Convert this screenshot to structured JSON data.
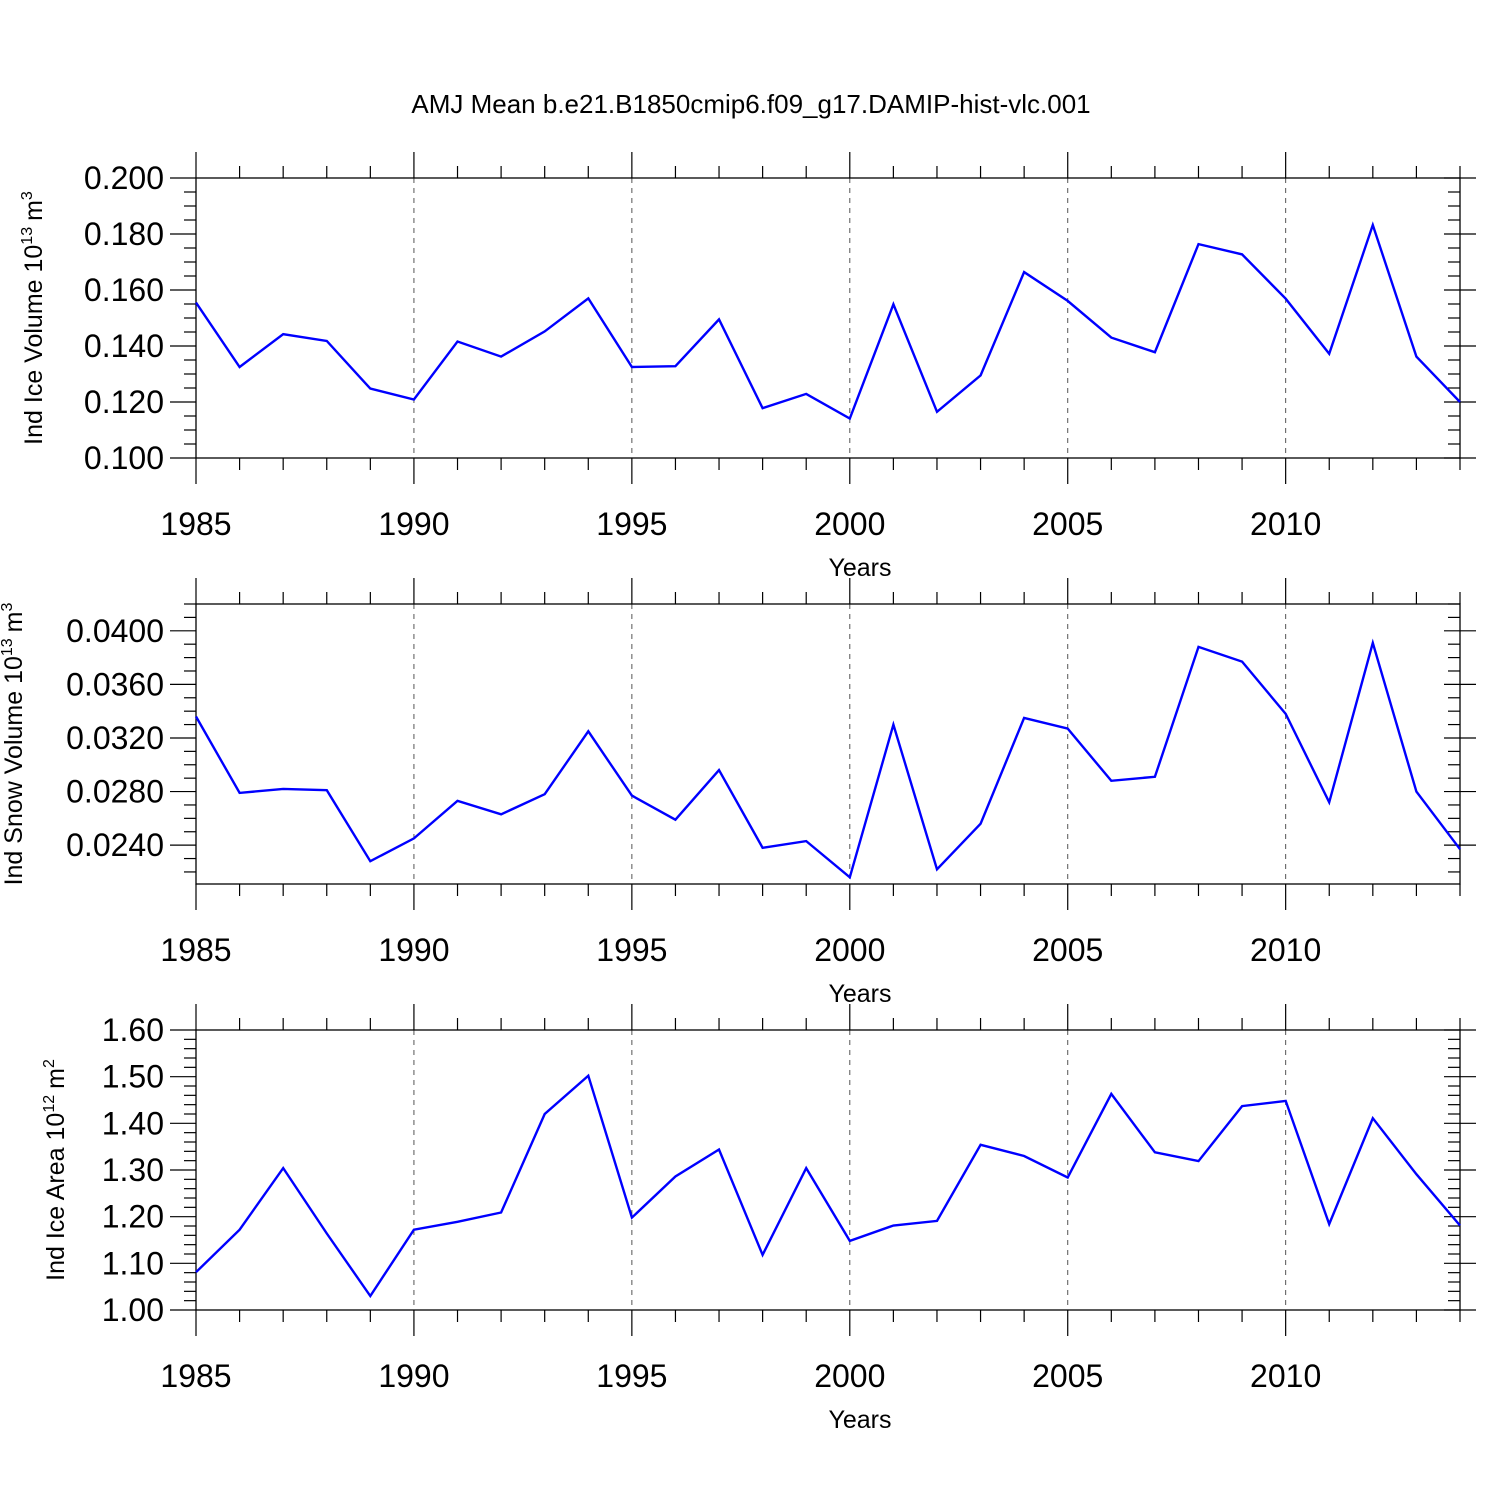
{
  "chart_data": [
    {
      "type": "line",
      "title": "AMJ Mean b.e21.B1850cmip6.f09_g17.DAMIP-hist-vlc.001",
      "ylabel": "Ind Ice Volume 10",
      "ylabel_sup": "13",
      "ylabel_unit": "m",
      "ylabel_unit_sup": "3",
      "xlabel": "Years",
      "xlim": [
        1985,
        2014
      ],
      "ylim": [
        0.1,
        0.2
      ],
      "x_major_ticks": [
        1985,
        1990,
        1995,
        2000,
        2005,
        2010
      ],
      "x_tick_labels": [
        "1985",
        "1990",
        "1995",
        "2000",
        "2005",
        "2010"
      ],
      "y_major_ticks": [
        0.1,
        0.12,
        0.14,
        0.16,
        0.18,
        0.2
      ],
      "y_tick_labels": [
        "0.100",
        "0.120",
        "0.140",
        "0.160",
        "0.180",
        "0.200"
      ],
      "y_minor_step": 0.005,
      "series": [
        {
          "name": "Ind Ice Volume",
          "color": "#0000ff",
          "x": [
            1985,
            1986,
            1987,
            1988,
            1989,
            1990,
            1991,
            1992,
            1993,
            1994,
            1995,
            1996,
            1997,
            1998,
            1999,
            2000,
            2001,
            2002,
            2003,
            2004,
            2005,
            2006,
            2007,
            2008,
            2009,
            2010,
            2011,
            2012,
            2013,
            2014
          ],
          "values": [
            0.1555,
            0.1325,
            0.1442,
            0.1418,
            0.1248,
            0.1209,
            0.1416,
            0.1362,
            0.1452,
            0.157,
            0.1325,
            0.1328,
            0.1495,
            0.1178,
            0.1229,
            0.1141,
            0.1549,
            0.1165,
            0.1295,
            0.1664,
            0.1561,
            0.143,
            0.1378,
            0.1764,
            0.1727,
            0.1569,
            0.1372,
            0.1832,
            0.1362,
            0.12
          ]
        }
      ]
    },
    {
      "type": "line",
      "title": "",
      "ylabel": "Ind Snow Volume 10",
      "ylabel_sup": "13",
      "ylabel_unit": "m",
      "ylabel_unit_sup": "3",
      "xlabel": "Years",
      "xlim": [
        1985,
        2014
      ],
      "ylim": [
        0.0211,
        0.042
      ],
      "x_major_ticks": [
        1985,
        1990,
        1995,
        2000,
        2005,
        2010
      ],
      "x_tick_labels": [
        "1985",
        "1990",
        "1995",
        "2000",
        "2005",
        "2010"
      ],
      "y_major_ticks": [
        0.024,
        0.028,
        0.032,
        0.036,
        0.04
      ],
      "y_tick_labels": [
        "0.0240",
        "0.0280",
        "0.0320",
        "0.0360",
        "0.0400"
      ],
      "y_minor_step": 0.001,
      "series": [
        {
          "name": "Ind Snow Volume",
          "color": "#0000ff",
          "x": [
            1985,
            1986,
            1987,
            1988,
            1989,
            1990,
            1991,
            1992,
            1993,
            1994,
            1995,
            1996,
            1997,
            1998,
            1999,
            2000,
            2001,
            2002,
            2003,
            2004,
            2005,
            2006,
            2007,
            2008,
            2009,
            2010,
            2011,
            2012,
            2013,
            2014
          ],
          "values": [
            0.0336,
            0.0279,
            0.0282,
            0.0281,
            0.0228,
            0.0245,
            0.0273,
            0.0263,
            0.0278,
            0.0325,
            0.0277,
            0.0259,
            0.0296,
            0.0238,
            0.0243,
            0.0216,
            0.033,
            0.0222,
            0.0256,
            0.0335,
            0.0327,
            0.0288,
            0.0291,
            0.0388,
            0.0377,
            0.0338,
            0.0272,
            0.0391,
            0.028,
            0.0237
          ]
        }
      ]
    },
    {
      "type": "line",
      "title": "",
      "ylabel": "Ind Ice Area 10",
      "ylabel_sup": "12",
      "ylabel_unit": "m",
      "ylabel_unit_sup": "2",
      "xlabel": "Years",
      "xlim": [
        1985,
        2014
      ],
      "ylim": [
        1.0,
        1.6
      ],
      "x_major_ticks": [
        1985,
        1990,
        1995,
        2000,
        2005,
        2010
      ],
      "x_tick_labels": [
        "1985",
        "1990",
        "1995",
        "2000",
        "2005",
        "2010"
      ],
      "y_major_ticks": [
        1.0,
        1.1,
        1.2,
        1.3,
        1.4,
        1.5,
        1.6
      ],
      "y_tick_labels": [
        "1.00",
        "1.10",
        "1.20",
        "1.30",
        "1.40",
        "1.50",
        "1.60"
      ],
      "y_minor_step": 0.02,
      "series": [
        {
          "name": "Ind Ice Area",
          "color": "#0000ff",
          "x": [
            1985,
            1986,
            1987,
            1988,
            1989,
            1990,
            1991,
            1992,
            1993,
            1994,
            1995,
            1996,
            1997,
            1998,
            1999,
            2000,
            2001,
            2002,
            2003,
            2004,
            2005,
            2006,
            2007,
            2008,
            2009,
            2010,
            2011,
            2012,
            2013,
            2014
          ],
          "values": [
            1.081,
            1.172,
            1.304,
            1.164,
            1.03,
            1.172,
            1.189,
            1.209,
            1.42,
            1.502,
            1.198,
            1.286,
            1.344,
            1.118,
            1.304,
            1.148,
            1.181,
            1.191,
            1.354,
            1.33,
            1.284,
            1.463,
            1.338,
            1.319,
            1.437,
            1.448,
            1.184,
            1.411,
            1.291,
            1.181
          ]
        }
      ]
    }
  ]
}
